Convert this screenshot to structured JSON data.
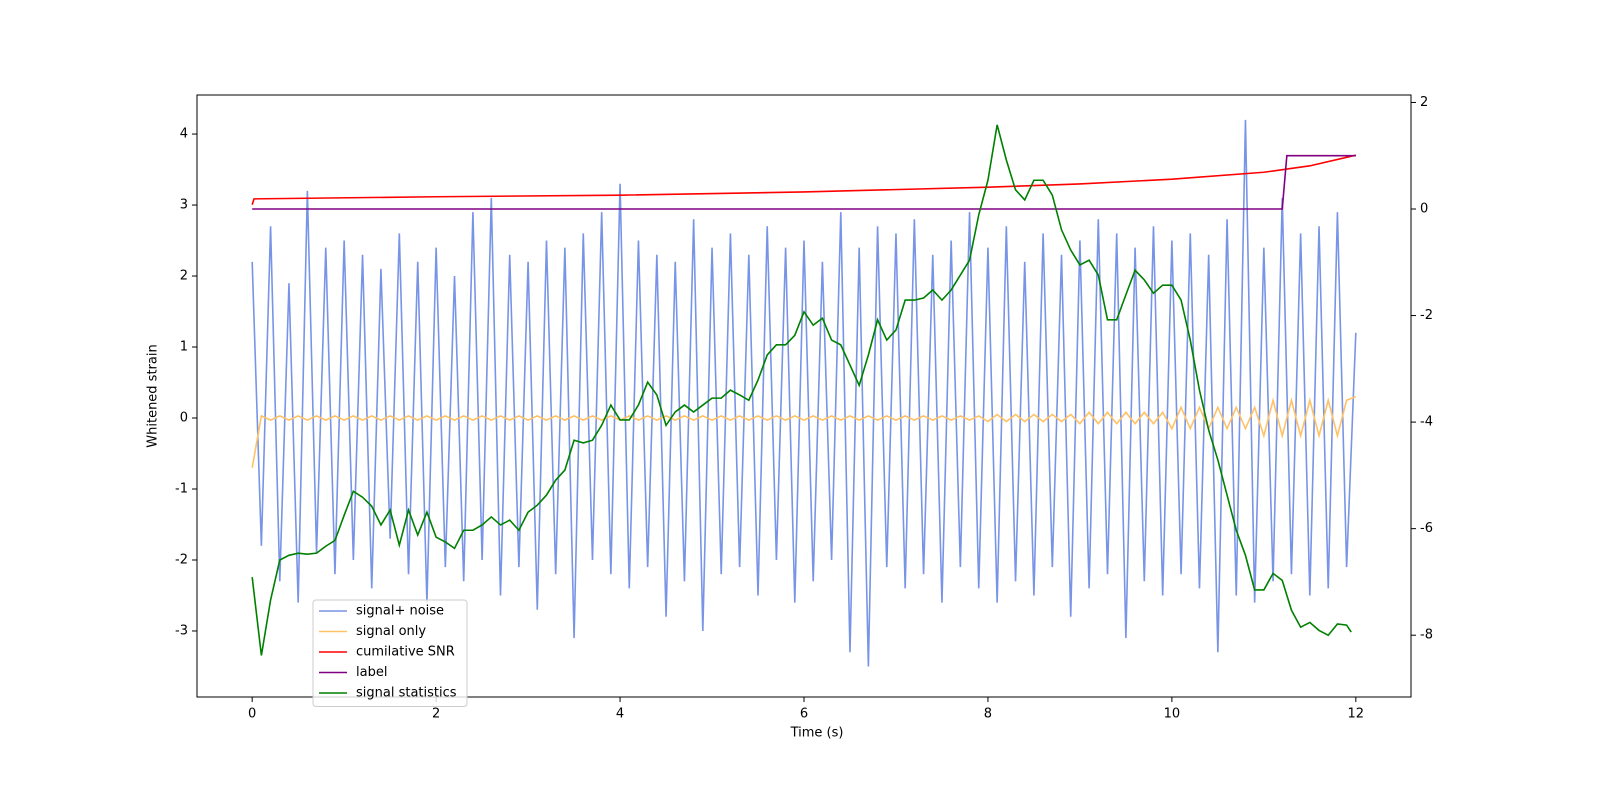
{
  "chart_data": {
    "type": "line",
    "xlabel": "Time (s)",
    "ylabel": "Whitened strain",
    "xlim": [
      -0.6,
      12.6
    ],
    "xticks": [
      0,
      2,
      4,
      6,
      8,
      10,
      12
    ],
    "ylim": [
      -3.93,
      4.55
    ],
    "yticks": [
      -3,
      -2,
      -1,
      0,
      1,
      2,
      3,
      4
    ],
    "y2lim": [
      -9.16,
      2.14
    ],
    "y2ticks": [
      -8,
      -6,
      -4,
      -2,
      0,
      2
    ],
    "legend": "lower left",
    "series": [
      {
        "name": "signal+ noise",
        "color": "#7894e6",
        "x": [
          0,
          0.1,
          0.2,
          0.3,
          0.4,
          0.5,
          0.6,
          0.7,
          0.8,
          0.9,
          1,
          1.1,
          1.2,
          1.3,
          1.4,
          1.5,
          1.6,
          1.7,
          1.8,
          1.9,
          2,
          2.1,
          2.2,
          2.3,
          2.4,
          2.5,
          2.6,
          2.7,
          2.8,
          2.9,
          3,
          3.1,
          3.2,
          3.3,
          3.4,
          3.5,
          3.6,
          3.7,
          3.8,
          3.9,
          4,
          4.1,
          4.2,
          4.3,
          4.4,
          4.5,
          4.6,
          4.7,
          4.8,
          4.9,
          5,
          5.1,
          5.2,
          5.3,
          5.4,
          5.5,
          5.6,
          5.7,
          5.8,
          5.9,
          6,
          6.1,
          6.2,
          6.3,
          6.4,
          6.5,
          6.6,
          6.7,
          6.8,
          6.9,
          7,
          7.1,
          7.2,
          7.3,
          7.4,
          7.5,
          7.6,
          7.7,
          7.8,
          7.9,
          8,
          8.1,
          8.2,
          8.3,
          8.4,
          8.5,
          8.6,
          8.7,
          8.8,
          8.9,
          9,
          9.1,
          9.2,
          9.3,
          9.4,
          9.5,
          9.6,
          9.7,
          9.8,
          9.9,
          10,
          10.1,
          10.2,
          10.3,
          10.4,
          10.5,
          10.6,
          10.7,
          10.8,
          10.9,
          11,
          11.1,
          11.2,
          11.3,
          11.4,
          11.5,
          11.6,
          11.7,
          11.8,
          11.9,
          12
        ],
        "values": [
          2.2,
          -1.8,
          2.7,
          -2.3,
          1.9,
          -2.6,
          3.2,
          -1.9,
          2.4,
          -2.2,
          2.5,
          -2.0,
          2.3,
          -2.4,
          2.1,
          -1.7,
          2.6,
          -2.2,
          2.2,
          -2.6,
          2.4,
          -2.1,
          2.0,
          -2.3,
          2.9,
          -2.0,
          3.1,
          -2.5,
          2.3,
          -2.1,
          2.2,
          -2.7,
          2.5,
          -2.2,
          2.4,
          -3.1,
          2.6,
          -2.0,
          2.9,
          -2.2,
          3.3,
          -2.4,
          2.5,
          -2.1,
          2.3,
          -2.8,
          2.2,
          -2.3,
          2.8,
          -3.0,
          2.4,
          -2.2,
          2.6,
          -2.1,
          2.3,
          -2.5,
          2.7,
          -2.0,
          2.4,
          -2.6,
          2.5,
          -2.3,
          2.2,
          -2.0,
          2.9,
          -3.3,
          2.4,
          -3.5,
          2.7,
          -2.1,
          2.6,
          -2.4,
          2.8,
          -2.2,
          2.3,
          -2.6,
          2.5,
          -2.1,
          2.9,
          -2.4,
          2.4,
          -2.6,
          2.7,
          -2.3,
          2.2,
          -2.5,
          2.6,
          -2.1,
          2.3,
          -2.8,
          2.5,
          -2.4,
          2.8,
          -2.2,
          2.6,
          -3.1,
          2.4,
          -2.3,
          2.7,
          -2.5,
          2.5,
          -2.2,
          2.6,
          -2.4,
          2.3,
          -3.3,
          2.8,
          -2.5,
          4.2,
          -2.6,
          2.4,
          -2.3,
          3.1,
          -2.2,
          2.6,
          -2.5,
          2.7,
          -2.4,
          2.9,
          -2.1,
          1.2
        ]
      },
      {
        "name": "signal only",
        "color": "#ffc266",
        "x": [
          0,
          0.1,
          0.2,
          0.3,
          0.4,
          0.5,
          0.6,
          0.7,
          0.8,
          0.9,
          1,
          1.1,
          1.2,
          1.3,
          1.4,
          1.5,
          1.6,
          1.7,
          1.8,
          1.9,
          2,
          2.1,
          2.2,
          2.3,
          2.4,
          2.5,
          2.6,
          2.7,
          2.8,
          2.9,
          3,
          3.1,
          3.2,
          3.3,
          3.4,
          3.5,
          3.6,
          3.7,
          3.8,
          3.9,
          4,
          4.1,
          4.2,
          4.3,
          4.4,
          4.5,
          4.6,
          4.7,
          4.8,
          4.9,
          5,
          5.1,
          5.2,
          5.3,
          5.4,
          5.5,
          5.6,
          5.7,
          5.8,
          5.9,
          6,
          6.1,
          6.2,
          6.3,
          6.4,
          6.5,
          6.6,
          6.7,
          6.8,
          6.9,
          7,
          7.1,
          7.2,
          7.3,
          7.4,
          7.5,
          7.6,
          7.7,
          7.8,
          7.9,
          8,
          8.1,
          8.2,
          8.3,
          8.4,
          8.5,
          8.6,
          8.7,
          8.8,
          8.9,
          9,
          9.1,
          9.2,
          9.3,
          9.4,
          9.5,
          9.6,
          9.7,
          9.8,
          9.9,
          10,
          10.1,
          10.2,
          10.3,
          10.4,
          10.5,
          10.6,
          10.7,
          10.8,
          10.9,
          11,
          11.1,
          11.2,
          11.3,
          11.4,
          11.5,
          11.6,
          11.7,
          11.8,
          11.9,
          12
        ],
        "values": [
          -0.7,
          0.03,
          -0.03,
          0.03,
          -0.03,
          0.03,
          -0.03,
          0.03,
          -0.03,
          0.03,
          -0.03,
          0.03,
          -0.03,
          0.03,
          -0.03,
          0.03,
          -0.03,
          0.03,
          -0.03,
          0.03,
          -0.03,
          0.03,
          -0.03,
          0.03,
          -0.03,
          0.03,
          -0.03,
          0.03,
          -0.03,
          0.03,
          -0.03,
          0.03,
          -0.03,
          0.03,
          -0.03,
          0.03,
          -0.03,
          0.03,
          -0.03,
          0.03,
          -0.03,
          0.03,
          -0.03,
          0.03,
          -0.03,
          0.03,
          -0.03,
          0.03,
          -0.03,
          0.03,
          -0.03,
          0.03,
          -0.03,
          0.03,
          -0.03,
          0.03,
          -0.03,
          0.03,
          -0.03,
          0.03,
          -0.03,
          0.03,
          -0.03,
          0.03,
          -0.03,
          0.03,
          -0.03,
          0.03,
          -0.03,
          0.03,
          -0.03,
          0.03,
          -0.03,
          0.03,
          -0.03,
          0.03,
          -0.03,
          0.03,
          -0.03,
          0.03,
          -0.05,
          0.05,
          -0.05,
          0.05,
          -0.05,
          0.05,
          -0.05,
          0.05,
          -0.05,
          0.05,
          -0.08,
          0.08,
          -0.08,
          0.08,
          -0.08,
          0.08,
          -0.08,
          0.08,
          -0.08,
          0.08,
          -0.15,
          0.15,
          -0.15,
          0.15,
          -0.15,
          0.15,
          -0.15,
          0.15,
          -0.15,
          0.15,
          -0.25,
          0.25,
          -0.25,
          0.25,
          -0.25,
          0.25,
          -0.25,
          0.25,
          -0.25,
          0.25,
          0.3
        ]
      },
      {
        "name": "cumilative SNR",
        "color": "red",
        "axis": "y2",
        "x": [
          0,
          0.02,
          2,
          4,
          6,
          8,
          9,
          10,
          11,
          11.5,
          12
        ],
        "values": [
          0.08,
          0.19,
          0.23,
          0.26,
          0.32,
          0.41,
          0.47,
          0.56,
          0.69,
          0.81,
          1.01
        ]
      },
      {
        "name": "label",
        "color": "purple",
        "axis": "y2",
        "x": [
          0,
          11.2,
          11.25,
          12
        ],
        "values": [
          0,
          0,
          1,
          1
        ]
      },
      {
        "name": "signal statistics",
        "color": "green",
        "axis": "y2",
        "x": [
          0,
          0.1,
          0.2,
          0.3,
          0.4,
          0.5,
          0.6,
          0.7,
          0.8,
          0.9,
          1,
          1.1,
          1.2,
          1.3,
          1.4,
          1.5,
          1.6,
          1.7,
          1.8,
          1.9,
          2,
          2.1,
          2.2,
          2.3,
          2.4,
          2.5,
          2.6,
          2.7,
          2.8,
          2.9,
          3,
          3.1,
          3.2,
          3.3,
          3.4,
          3.5,
          3.6,
          3.7,
          3.8,
          3.9,
          4,
          4.1,
          4.2,
          4.3,
          4.4,
          4.5,
          4.6,
          4.7,
          4.8,
          4.9,
          5,
          5.1,
          5.2,
          5.3,
          5.4,
          5.5,
          5.6,
          5.7,
          5.8,
          5.9,
          6,
          6.1,
          6.2,
          6.3,
          6.4,
          6.5,
          6.6,
          6.7,
          6.8,
          6.9,
          7,
          7.1,
          7.2,
          7.3,
          7.4,
          7.5,
          7.6,
          7.7,
          7.8,
          7.9,
          8,
          8.1,
          8.2,
          8.3,
          8.4,
          8.5,
          8.6,
          8.7,
          8.8,
          8.9,
          9,
          9.1,
          9.2,
          9.3,
          9.4,
          9.5,
          9.6,
          9.7,
          9.8,
          9.9,
          10,
          10.1,
          10.2,
          10.3,
          10.4,
          10.5,
          10.6,
          10.7,
          10.8,
          10.9,
          11,
          11.1,
          11.2,
          11.3,
          11.4,
          11.5,
          11.6,
          11.7,
          11.8,
          11.9,
          11.95
        ],
        "values": [
          -6.91,
          -8.38,
          -7.34,
          -6.59,
          -6.5,
          -6.46,
          -6.48,
          -6.46,
          -6.33,
          -6.22,
          -5.75,
          -5.3,
          -5.41,
          -5.58,
          -5.93,
          -5.65,
          -6.31,
          -5.65,
          -6.12,
          -5.69,
          -6.16,
          -6.25,
          -6.37,
          -6.03,
          -6.03,
          -5.93,
          -5.78,
          -5.93,
          -5.84,
          -6.03,
          -5.69,
          -5.56,
          -5.37,
          -5.09,
          -4.9,
          -4.34,
          -4.39,
          -4.34,
          -4.06,
          -3.68,
          -3.96,
          -3.96,
          -3.68,
          -3.25,
          -3.49,
          -4.06,
          -3.81,
          -3.68,
          -3.81,
          -3.68,
          -3.55,
          -3.55,
          -3.4,
          -3.49,
          -3.59,
          -3.21,
          -2.74,
          -2.55,
          -2.55,
          -2.37,
          -1.93,
          -2.18,
          -2.05,
          -2.46,
          -2.55,
          -2.93,
          -3.31,
          -2.74,
          -2.08,
          -2.46,
          -2.27,
          -1.71,
          -1.71,
          -1.67,
          -1.52,
          -1.71,
          -1.52,
          -1.24,
          -0.96,
          -0.11,
          0.54,
          1.58,
          0.92,
          0.36,
          0.17,
          0.54,
          0.54,
          0.26,
          -0.39,
          -0.77,
          -1.05,
          -0.96,
          -1.24,
          -2.08,
          -2.08,
          -1.61,
          -1.15,
          -1.33,
          -1.58,
          -1.43,
          -1.43,
          -1.71,
          -2.46,
          -3.4,
          -4.15,
          -4.71,
          -5.37,
          -6.03,
          -6.5,
          -7.15,
          -7.15,
          -6.84,
          -6.97,
          -7.53,
          -7.85,
          -7.76,
          -7.91,
          -8.0,
          -7.79,
          -7.81,
          -7.94
        ]
      }
    ]
  }
}
